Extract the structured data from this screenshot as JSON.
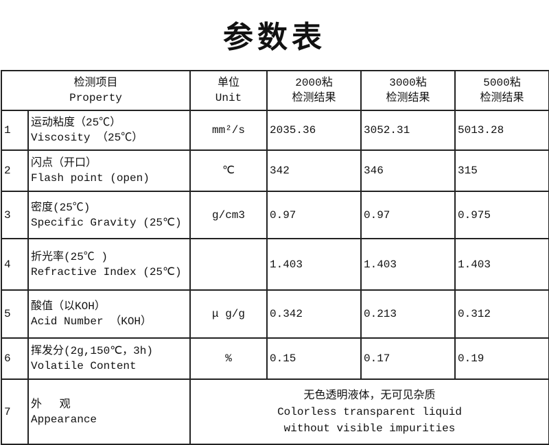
{
  "title": "参数表",
  "header": {
    "property_cn": "检测项目",
    "property_en": "Property",
    "unit_cn": "单位",
    "unit_en": "Unit",
    "col_2000_a": "2000粘",
    "col_2000_b": "检测结果",
    "col_3000_a": "3000粘",
    "col_3000_b": "检测结果",
    "col_5000_a": "5000粘",
    "col_5000_b": "检测结果"
  },
  "rows": [
    {
      "no": "1",
      "cn": "运动粘度（25℃）",
      "en": "Viscosity （25℃）",
      "unit": "mm²/s",
      "v2000": "2035.36",
      "v3000": "3052.31",
      "v5000": "5013.28"
    },
    {
      "no": "2",
      "cn": "闪点（开口）",
      "en": "Flash point (open)",
      "unit": "℃",
      "v2000": "342",
      "v3000": "346",
      "v5000": "315"
    },
    {
      "no": "3",
      "cn": "密度(25℃)",
      "en": "Specific Gravity (25℃)",
      "unit": "g/cm3",
      "v2000": "0.97",
      "v3000": "0.97",
      "v5000": "0.975"
    },
    {
      "no": "4",
      "cn": "折光率(25℃ )",
      "en": "Refractive Index (25℃)",
      "unit": "",
      "v2000": "1.403",
      "v3000": "1.403",
      "v5000": "1.403"
    },
    {
      "no": "5",
      "cn": "酸值（以KOH）",
      "en": "Acid Number （KOH）",
      "unit": "μ g/g",
      "v2000": "0.342",
      "v3000": "0.213",
      "v5000": "0.312"
    },
    {
      "no": "6",
      "cn": "挥发分(2g,150℃，3h)",
      "en": "Volatile Content",
      "unit": "%",
      "v2000": "0.15",
      "v3000": "0.17",
      "v5000": "0.19"
    }
  ],
  "appearance": {
    "no": "7",
    "cn": "外　 观",
    "en": "Appearance",
    "value_cn": "无色透明液体，无可见杂质",
    "value_en1": "Colorless transparent liquid",
    "value_en2": "without visible impurities"
  }
}
